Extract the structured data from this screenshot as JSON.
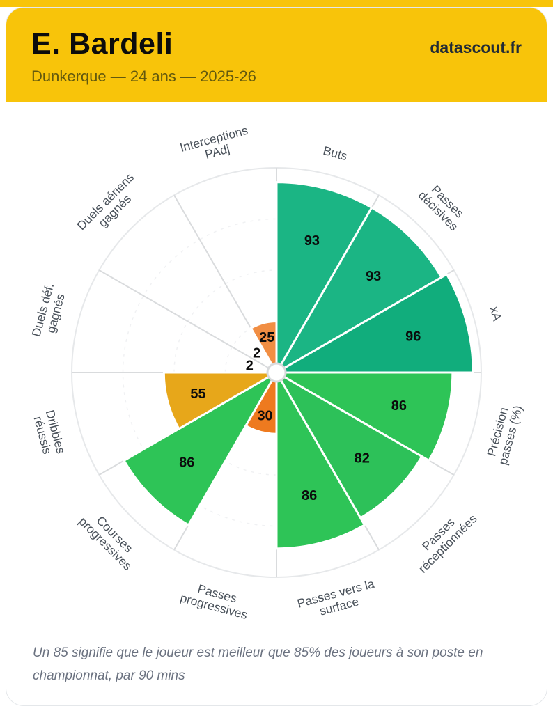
{
  "header": {
    "title": "E. Bardeli",
    "subtitle": "Dunkerque — 24 ans — 2025-26",
    "brand": "datascout.fr",
    "background_color": "#f8c40a"
  },
  "footnote": "Un 85 signifie que le joueur est meilleur que 85% des joueurs à son poste en championnat, par 90 mins",
  "chart_data": {
    "type": "pizza",
    "title": "",
    "start_angle_deg": 0,
    "slice_span_deg": 30,
    "value_range": [
      0,
      100
    ],
    "grid": true,
    "categories": [
      "Buts",
      "Passes décisives",
      "xA",
      "Précision passes (%)",
      "Passes réceptionnées",
      "Passes vers la surface",
      "Passes progressives",
      "Courses progressives",
      "Dribbles réussis",
      "Duels déf. gagnés",
      "Duels aériens gagnés",
      "Interceptions PAdj"
    ],
    "category_lines": [
      [
        "Buts"
      ],
      [
        "Passes",
        "décisives"
      ],
      [
        "xA"
      ],
      [
        "Précision",
        "passes (%)"
      ],
      [
        "Passes",
        "réceptionnées"
      ],
      [
        "Passes vers la",
        "surface"
      ],
      [
        "Passes",
        "progressives"
      ],
      [
        "Courses",
        "progressives"
      ],
      [
        "Dribbles",
        "réussis"
      ],
      [
        "Duels déf.",
        "gagnés"
      ],
      [
        "Duels aériens",
        "gagnés"
      ],
      [
        "Interceptions",
        "PAdj"
      ]
    ],
    "values": [
      93,
      93,
      96,
      86,
      82,
      86,
      30,
      86,
      55,
      2,
      2,
      25
    ],
    "slice_colors": [
      "#1bb584",
      "#1bb584",
      "#11ad7c",
      "#2ec457",
      "#2dc159",
      "#2ec457",
      "#ee7a1f",
      "#2ec457",
      "#e7a71a",
      "#e4572e",
      "#e4572e",
      "#f18e43"
    ],
    "style": {
      "ring_color": "#e6e8ea",
      "spoke_color": "#d9dbdd",
      "inner_dash_color": "#f0f1f3",
      "wedge_edge_color": "#ffffff",
      "value_label_color": "#0b0b0b",
      "category_label_color": "#49515a",
      "hub_fill": "#ffffff",
      "hub_stroke": "#d8dadc"
    }
  }
}
